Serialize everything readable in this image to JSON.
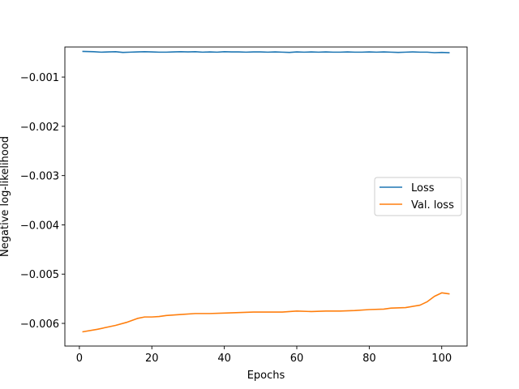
{
  "chart_data": {
    "type": "line",
    "title": "",
    "xlabel": "Epochs",
    "ylabel": "Negative log-likelihood",
    "xlim": [
      -4,
      107
    ],
    "ylim": [
      -0.00646,
      -0.00039
    ],
    "xticks": [
      0,
      20,
      40,
      60,
      80,
      100
    ],
    "xtick_labels": [
      "0",
      "20",
      "40",
      "60",
      "80",
      "100"
    ],
    "yticks": [
      -0.006,
      -0.005,
      -0.004,
      -0.003,
      -0.002,
      -0.001
    ],
    "ytick_labels": [
      "−0.006",
      "−0.005",
      "−0.004",
      "−0.003",
      "−0.002",
      "−0.001"
    ],
    "grid": false,
    "legend_position": "center-right",
    "series": [
      {
        "name": "Loss",
        "color": "#1f77b4",
        "x": [
          1,
          4,
          6,
          8,
          10,
          12,
          14,
          16,
          18,
          20,
          22,
          24,
          26,
          28,
          30,
          32,
          34,
          36,
          38,
          40,
          42,
          44,
          46,
          48,
          50,
          52,
          54,
          56,
          58,
          60,
          62,
          64,
          66,
          68,
          70,
          72,
          74,
          76,
          78,
          80,
          82,
          84,
          86,
          88,
          90,
          92,
          94,
          96,
          98,
          100,
          102
        ],
        "y": [
          -0.00048,
          -0.000485,
          -0.000495,
          -0.00049,
          -0.000485,
          -0.0005,
          -0.000495,
          -0.00049,
          -0.000485,
          -0.00049,
          -0.000495,
          -0.000495,
          -0.00049,
          -0.000485,
          -0.00049,
          -0.000485,
          -0.000495,
          -0.00049,
          -0.000495,
          -0.000485,
          -0.00049,
          -0.00049,
          -0.000495,
          -0.00049,
          -0.00049,
          -0.000495,
          -0.00049,
          -0.000495,
          -0.0005,
          -0.00049,
          -0.000495,
          -0.00049,
          -0.000495,
          -0.00049,
          -0.000495,
          -0.000495,
          -0.00049,
          -0.000495,
          -0.000495,
          -0.00049,
          -0.000495,
          -0.00049,
          -0.000495,
          -0.0005,
          -0.000495,
          -0.00049,
          -0.000495,
          -0.000495,
          -0.000505,
          -0.0005,
          -0.000505
        ]
      },
      {
        "name": "Val. loss",
        "color": "#ff7f0e",
        "x": [
          1,
          5,
          10,
          13,
          16,
          18,
          20,
          22,
          24,
          28,
          32,
          36,
          40,
          44,
          48,
          52,
          56,
          60,
          64,
          68,
          72,
          76,
          80,
          84,
          86,
          90,
          94,
          96,
          98,
          100,
          102
        ],
        "y": [
          -0.00617,
          -0.00612,
          -0.00604,
          -0.00598,
          -0.0059,
          -0.00587,
          -0.00587,
          -0.00586,
          -0.00584,
          -0.00582,
          -0.0058,
          -0.0058,
          -0.00579,
          -0.00578,
          -0.00577,
          -0.00577,
          -0.00577,
          -0.00575,
          -0.00576,
          -0.00575,
          -0.00575,
          -0.00574,
          -0.00572,
          -0.00571,
          -0.00569,
          -0.00568,
          -0.00563,
          -0.00556,
          -0.00545,
          -0.00538,
          -0.0054
        ]
      }
    ]
  }
}
